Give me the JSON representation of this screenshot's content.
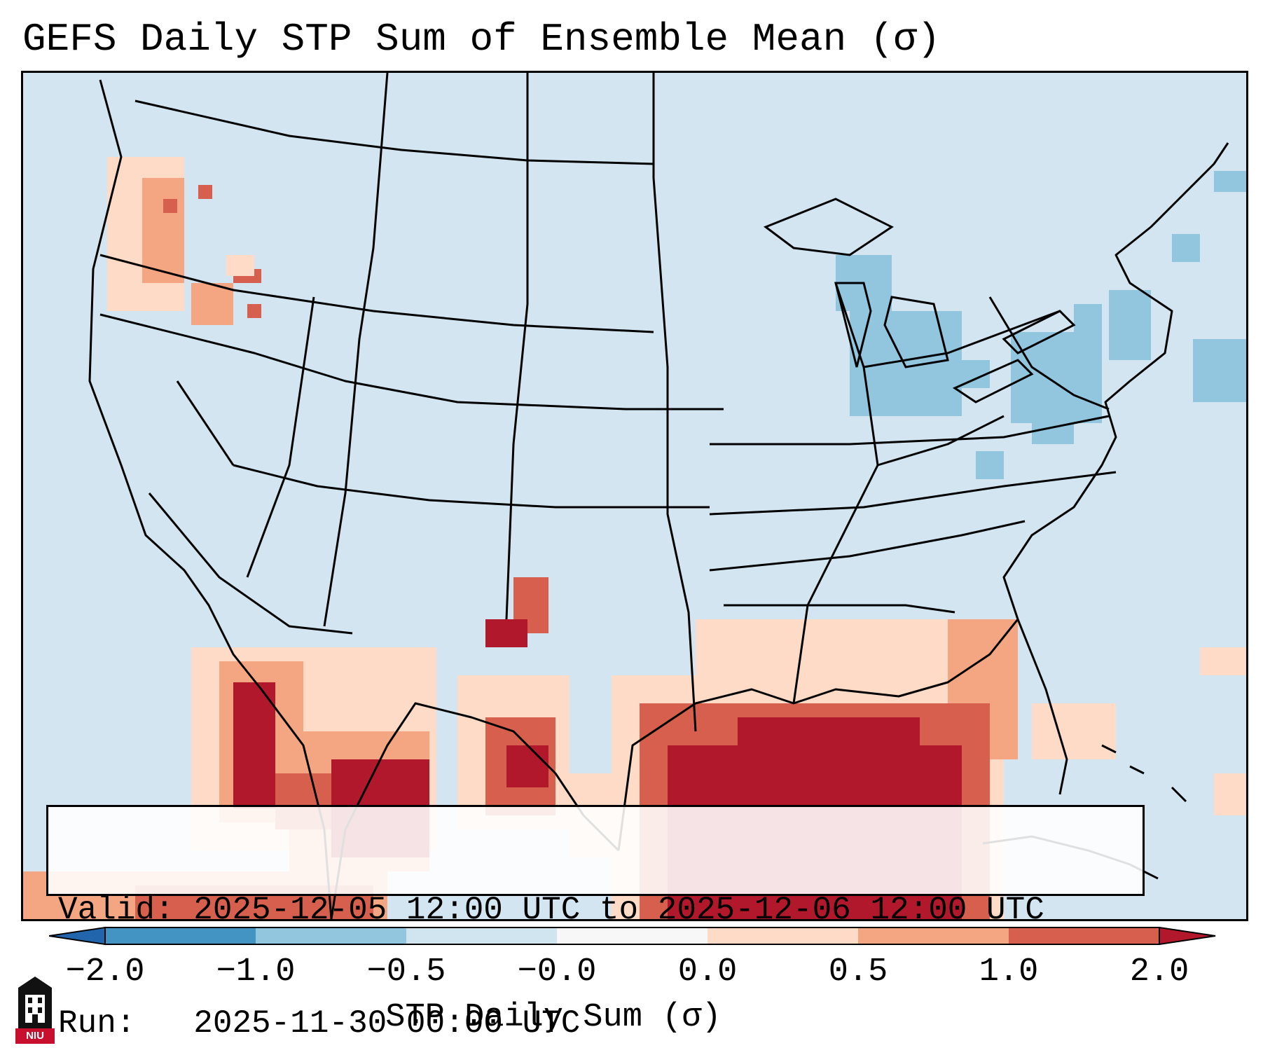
{
  "title": "GEFS Daily STP Sum of Ensemble Mean (σ)",
  "info_box": {
    "valid_line": "Valid: 2025-12-05 12:00 UTC to 2025-12-06 12:00 UTC",
    "run_line": "Run:   2025-11-30 00:00 UTC"
  },
  "colorbar": {
    "label": "STP Daily Sum (σ)",
    "ticks": [
      "−2.0",
      "−1.0",
      "−0.5",
      "−0.0",
      "0.0",
      "0.5",
      "1.0",
      "2.0"
    ],
    "colors": {
      "lt_m2": "#2166ac",
      "m2_m1": "#4393c3",
      "m1_m05": "#92c5de",
      "m05_m0": "#d1e5f0",
      "m0_0": "#f7f7f7",
      "0_05": "#fddbc7",
      "05_1": "#f4a582",
      "1_2": "#d6604d",
      "gt_2": "#b2182b"
    }
  },
  "map": {
    "ocean_color": "#d2e5f0",
    "border_color": "#000000",
    "stp_colors": {
      "light": "#fddbc7",
      "medium": "#f4a582",
      "strong": "#d6604d",
      "extreme": "#b2182b",
      "negative": "#92c5de"
    }
  },
  "logo": {
    "text": "NIU",
    "icon": "university-tower-icon"
  }
}
